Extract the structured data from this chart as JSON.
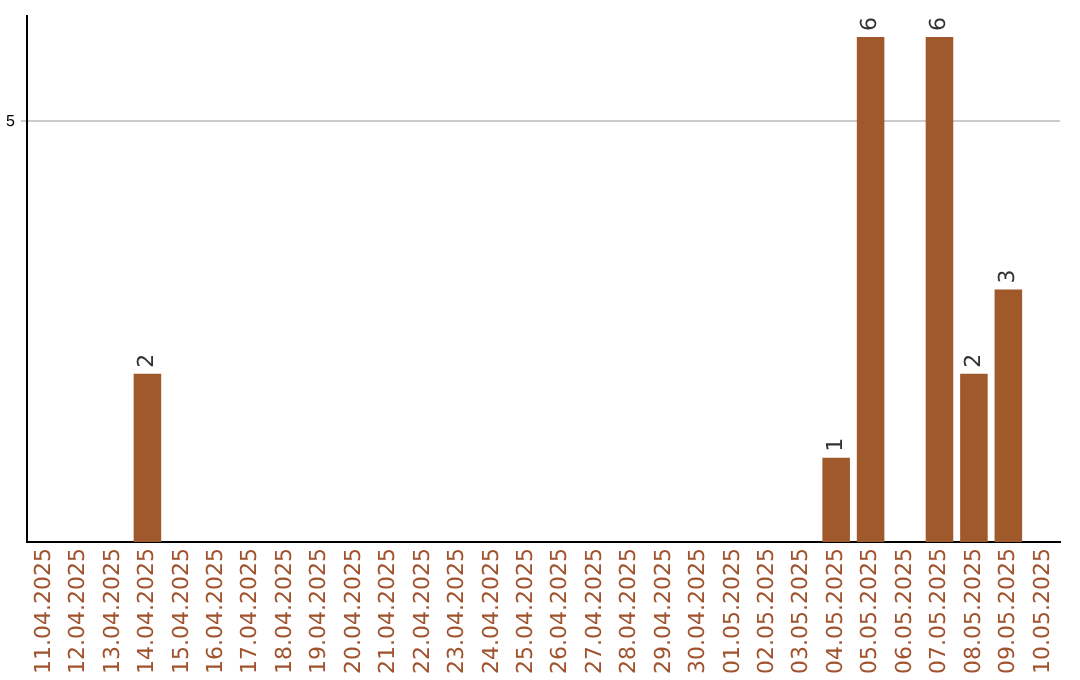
{
  "chart_data": {
    "type": "bar",
    "categories": [
      "11.04.2025",
      "12.04.2025",
      "13.04.2025",
      "14.04.2025",
      "15.04.2025",
      "16.04.2025",
      "17.04.2025",
      "18.04.2025",
      "19.04.2025",
      "20.04.2025",
      "21.04.2025",
      "22.04.2025",
      "23.04.2025",
      "24.04.2025",
      "25.04.2025",
      "26.04.2025",
      "27.04.2025",
      "28.04.2025",
      "29.04.2025",
      "30.04.2025",
      "01.05.2025",
      "02.05.2025",
      "03.05.2025",
      "04.05.2025",
      "05.05.2025",
      "06.05.2025",
      "07.05.2025",
      "08.05.2025",
      "09.05.2025",
      "10.05.2025"
    ],
    "values": [
      0,
      0,
      0,
      2,
      0,
      0,
      0,
      0,
      0,
      0,
      0,
      0,
      0,
      0,
      0,
      0,
      0,
      0,
      0,
      0,
      0,
      0,
      0,
      1,
      6,
      0,
      6,
      2,
      3,
      0
    ],
    "value_labels": [
      null,
      null,
      null,
      "2",
      null,
      null,
      null,
      null,
      null,
      null,
      null,
      null,
      null,
      null,
      null,
      null,
      null,
      null,
      null,
      null,
      null,
      null,
      null,
      "1",
      "6",
      null,
      "6",
      "2",
      "3",
      null
    ],
    "color": "#a0592b",
    "ylim": [
      0,
      6.25
    ],
    "yticks": [
      5
    ],
    "grid": "y",
    "legend": false
  }
}
